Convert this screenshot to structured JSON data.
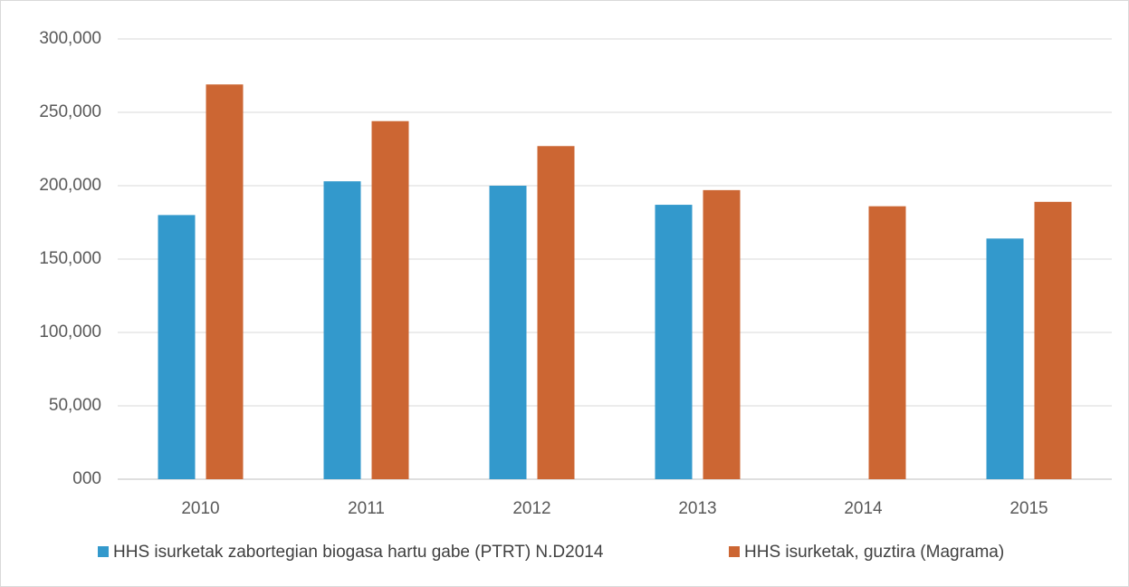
{
  "chart_data": {
    "type": "bar",
    "categories": [
      "2010",
      "2011",
      "2012",
      "2013",
      "2014",
      "2015"
    ],
    "series": [
      {
        "name": "HHS isurketak zabortegian biogasa hartu gabe (PTRT) N.D2014",
        "color": "#3399cc",
        "values": [
          180000,
          203000,
          200000,
          187000,
          null,
          164000
        ]
      },
      {
        "name": "HHS isurketak, guztira (Magrama)",
        "color": "#cc6633",
        "values": [
          269000,
          244000,
          227000,
          197000,
          186000,
          189000
        ]
      }
    ],
    "ylim": [
      0,
      300000
    ],
    "yticks": [
      {
        "value": 0,
        "label": "000"
      },
      {
        "value": 50000,
        "label": "50,000"
      },
      {
        "value": 100000,
        "label": "100,000"
      },
      {
        "value": 150000,
        "label": "150,000"
      },
      {
        "value": 200000,
        "label": "200,000"
      },
      {
        "value": 250000,
        "label": "250,000"
      },
      {
        "value": 300000,
        "label": "300,000"
      }
    ],
    "grid": true,
    "legend": "bottom"
  }
}
